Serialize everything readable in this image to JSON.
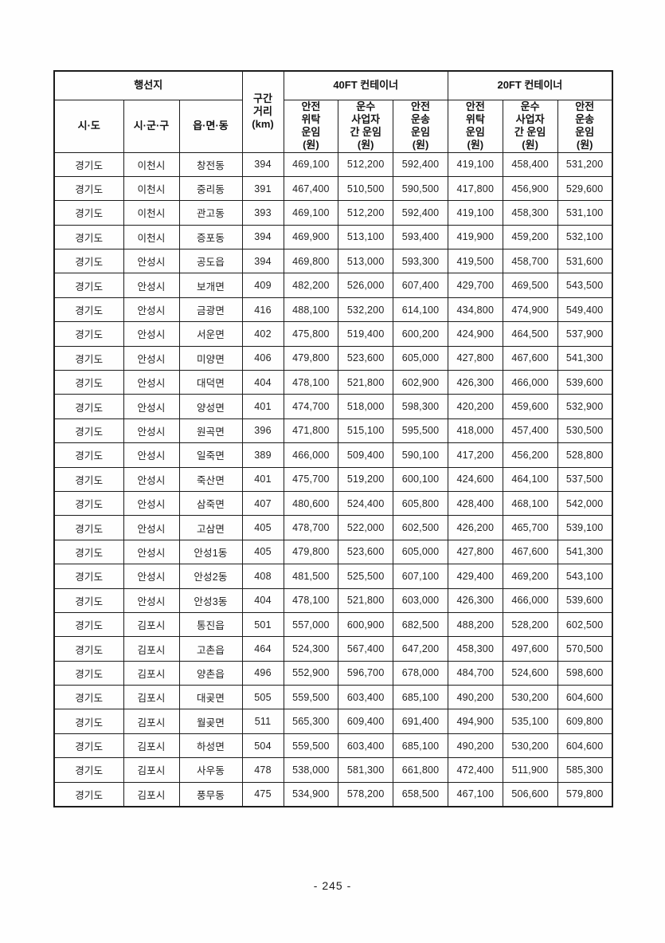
{
  "table": {
    "group_headers": {
      "destination": "행선지",
      "distance": "구간\n거리\n(km)",
      "ft40": "40FT 컨테이너",
      "ft20": "20FT 컨테이너"
    },
    "sub_headers": {
      "sido": "시·도",
      "sigungu": "시·군·구",
      "eupmyeondong": "읍·면·동",
      "safe_consign": "안전\n위탁\n운임\n(원)",
      "carrier_between": "운수\n사업자\n간 운임\n(원)",
      "safe_transport": "안전\n운송\n운임\n(원)"
    },
    "col_keys": [
      "sido",
      "sigungu",
      "eupmyeondong",
      "distance-km",
      "ft40-safe-consign-fare",
      "ft40-carrier-fare",
      "ft40-safe-transport-fare",
      "ft20-safe-consign-fare",
      "ft20-carrier-fare",
      "ft20-safe-transport-fare"
    ],
    "rows": [
      [
        "경기도",
        "이천시",
        "창전동",
        "394",
        "469,100",
        "512,200",
        "592,400",
        "419,100",
        "458,400",
        "531,200"
      ],
      [
        "경기도",
        "이천시",
        "중리동",
        "391",
        "467,400",
        "510,500",
        "590,500",
        "417,800",
        "456,900",
        "529,600"
      ],
      [
        "경기도",
        "이천시",
        "관고동",
        "393",
        "469,100",
        "512,200",
        "592,400",
        "419,100",
        "458,300",
        "531,100"
      ],
      [
        "경기도",
        "이천시",
        "증포동",
        "394",
        "469,900",
        "513,100",
        "593,400",
        "419,900",
        "459,200",
        "532,100"
      ],
      [
        "경기도",
        "안성시",
        "공도읍",
        "394",
        "469,800",
        "513,000",
        "593,300",
        "419,500",
        "458,700",
        "531,600"
      ],
      [
        "경기도",
        "안성시",
        "보개면",
        "409",
        "482,200",
        "526,000",
        "607,400",
        "429,700",
        "469,500",
        "543,500"
      ],
      [
        "경기도",
        "안성시",
        "금광면",
        "416",
        "488,100",
        "532,200",
        "614,100",
        "434,800",
        "474,900",
        "549,400"
      ],
      [
        "경기도",
        "안성시",
        "서운면",
        "402",
        "475,800",
        "519,400",
        "600,200",
        "424,900",
        "464,500",
        "537,900"
      ],
      [
        "경기도",
        "안성시",
        "미양면",
        "406",
        "479,800",
        "523,600",
        "605,000",
        "427,800",
        "467,600",
        "541,300"
      ],
      [
        "경기도",
        "안성시",
        "대덕면",
        "404",
        "478,100",
        "521,800",
        "602,900",
        "426,300",
        "466,000",
        "539,600"
      ],
      [
        "경기도",
        "안성시",
        "양성면",
        "401",
        "474,700",
        "518,000",
        "598,300",
        "420,200",
        "459,600",
        "532,900"
      ],
      [
        "경기도",
        "안성시",
        "원곡면",
        "396",
        "471,800",
        "515,100",
        "595,500",
        "418,000",
        "457,400",
        "530,500"
      ],
      [
        "경기도",
        "안성시",
        "일죽면",
        "389",
        "466,000",
        "509,400",
        "590,100",
        "417,200",
        "456,200",
        "528,800"
      ],
      [
        "경기도",
        "안성시",
        "죽산면",
        "401",
        "475,700",
        "519,200",
        "600,100",
        "424,600",
        "464,100",
        "537,500"
      ],
      [
        "경기도",
        "안성시",
        "삼죽면",
        "407",
        "480,600",
        "524,400",
        "605,800",
        "428,400",
        "468,100",
        "542,000"
      ],
      [
        "경기도",
        "안성시",
        "고삼면",
        "405",
        "478,700",
        "522,000",
        "602,500",
        "426,200",
        "465,700",
        "539,100"
      ],
      [
        "경기도",
        "안성시",
        "안성1동",
        "405",
        "479,800",
        "523,600",
        "605,000",
        "427,800",
        "467,600",
        "541,300"
      ],
      [
        "경기도",
        "안성시",
        "안성2동",
        "408",
        "481,500",
        "525,500",
        "607,100",
        "429,400",
        "469,200",
        "543,100"
      ],
      [
        "경기도",
        "안성시",
        "안성3동",
        "404",
        "478,100",
        "521,800",
        "603,000",
        "426,300",
        "466,000",
        "539,600"
      ],
      [
        "경기도",
        "김포시",
        "통진읍",
        "501",
        "557,000",
        "600,900",
        "682,500",
        "488,200",
        "528,200",
        "602,500"
      ],
      [
        "경기도",
        "김포시",
        "고촌읍",
        "464",
        "524,300",
        "567,400",
        "647,200",
        "458,300",
        "497,600",
        "570,500"
      ],
      [
        "경기도",
        "김포시",
        "양촌읍",
        "496",
        "552,900",
        "596,700",
        "678,000",
        "484,700",
        "524,600",
        "598,600"
      ],
      [
        "경기도",
        "김포시",
        "대곶면",
        "505",
        "559,500",
        "603,400",
        "685,100",
        "490,200",
        "530,200",
        "604,600"
      ],
      [
        "경기도",
        "김포시",
        "월곶면",
        "511",
        "565,300",
        "609,400",
        "691,400",
        "494,900",
        "535,100",
        "609,800"
      ],
      [
        "경기도",
        "김포시",
        "하성면",
        "504",
        "559,500",
        "603,400",
        "685,100",
        "490,200",
        "530,200",
        "604,600"
      ],
      [
        "경기도",
        "김포시",
        "사우동",
        "478",
        "538,000",
        "581,300",
        "661,800",
        "472,400",
        "511,900",
        "585,300"
      ],
      [
        "경기도",
        "김포시",
        "풍무동",
        "475",
        "534,900",
        "578,200",
        "658,500",
        "467,100",
        "506,600",
        "579,800"
      ]
    ]
  },
  "footer": {
    "page_number": "- 245 -"
  }
}
